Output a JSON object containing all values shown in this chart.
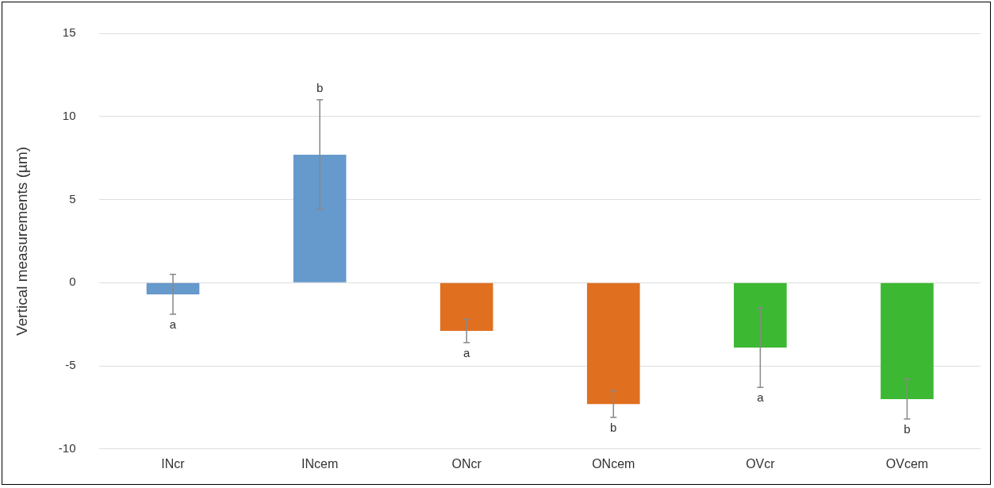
{
  "chart_data": {
    "type": "bar",
    "ylabel": "Vertical measurements (µm)",
    "categories": [
      "INcr",
      "INcem",
      "ONcr",
      "ONcem",
      "OVcr",
      "OVcem"
    ],
    "values": [
      -0.7,
      7.7,
      -2.9,
      -7.3,
      -3.9,
      -7.0
    ],
    "errors": [
      1.2,
      3.3,
      0.7,
      0.8,
      2.4,
      1.2
    ],
    "colors": [
      "#6699cc",
      "#6699cc",
      "#e07020",
      "#e07020",
      "#3cb832",
      "#3cb832"
    ],
    "ylim": [
      -10,
      15
    ],
    "yticks": [
      -10,
      -5,
      0,
      5,
      10,
      15
    ],
    "grid": "y",
    "legend": false,
    "annotations": [
      "a",
      "b",
      "a",
      "b",
      "a",
      "b"
    ]
  }
}
